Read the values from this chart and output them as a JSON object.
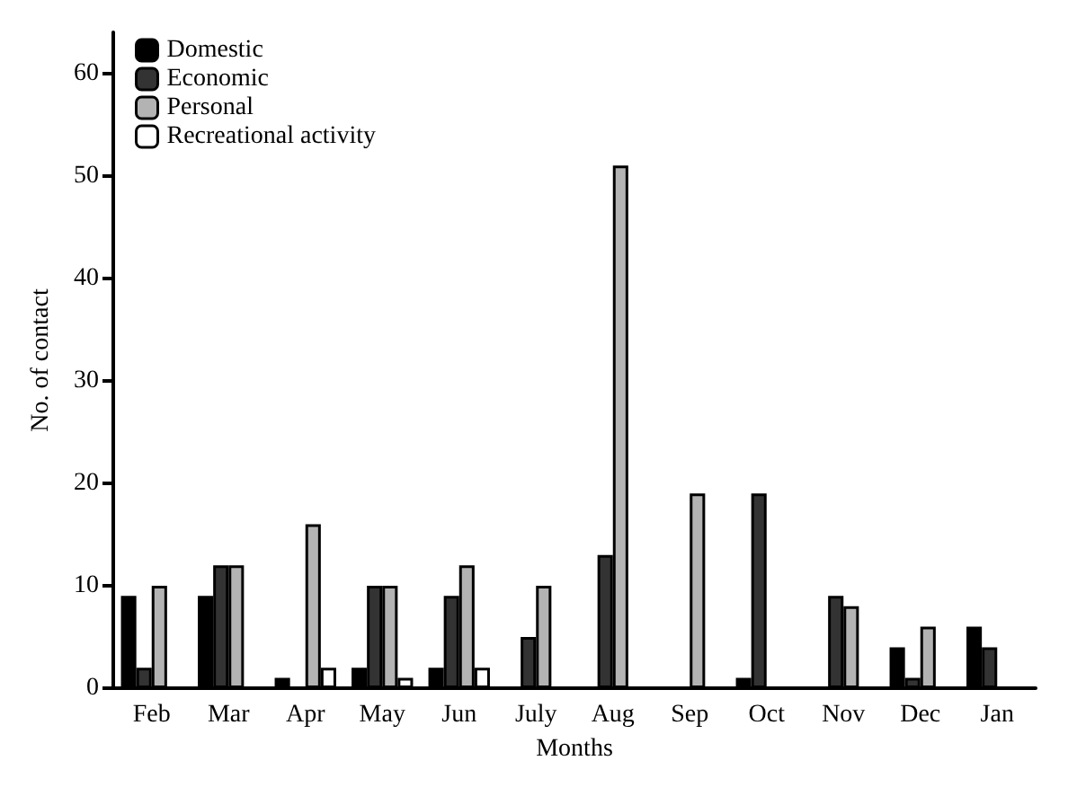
{
  "chart_data": {
    "type": "bar",
    "xlabel": "Months",
    "ylabel": "No. of contact",
    "categories": [
      "Feb",
      "Mar",
      "Apr",
      "May",
      "Jun",
      "July",
      "Aug",
      "Sep",
      "Oct",
      "Nov",
      "Dec",
      "Jan"
    ],
    "series": [
      {
        "name": "Domestic",
        "color": "#000000",
        "values": [
          9,
          9,
          1,
          2,
          2,
          null,
          null,
          null,
          1,
          null,
          4,
          6
        ]
      },
      {
        "name": "Economic",
        "color": "#333333",
        "values": [
          2,
          12,
          null,
          10,
          9,
          5,
          13,
          null,
          19,
          9,
          1,
          4
        ]
      },
      {
        "name": "Personal",
        "color": "#b3b3b3",
        "values": [
          10,
          12,
          16,
          10,
          12,
          10,
          51,
          19,
          null,
          8,
          6,
          null
        ]
      },
      {
        "name": "Recreational activity",
        "color": "#ffffff",
        "values": [
          null,
          null,
          2,
          1,
          2,
          null,
          null,
          null,
          null,
          null,
          null,
          null
        ]
      }
    ],
    "ylim": [
      0,
      64
    ],
    "yticks": [
      0,
      10,
      20,
      30,
      40,
      50,
      60
    ],
    "grid": false,
    "legend": "top left"
  }
}
